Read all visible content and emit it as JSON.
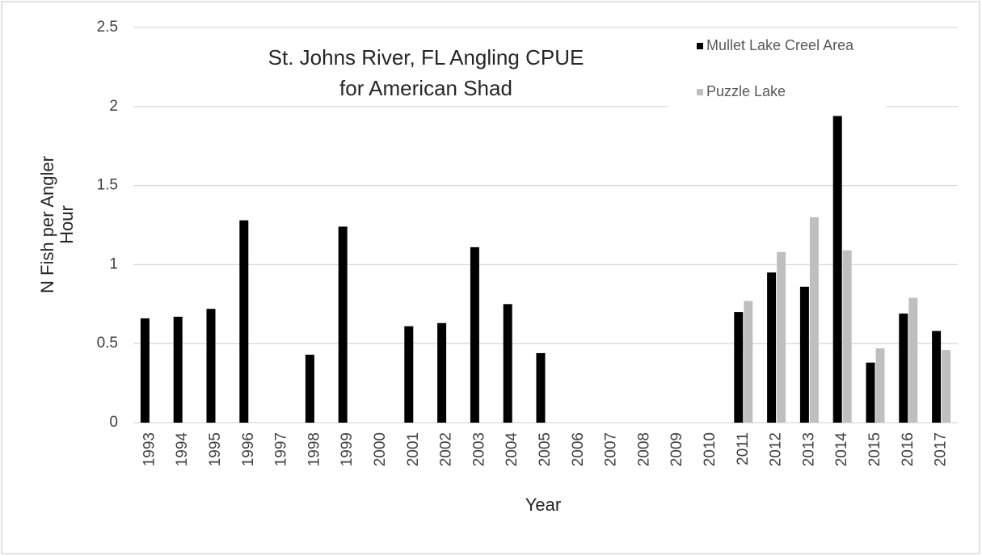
{
  "chart_data": {
    "type": "bar",
    "title": [
      "St. Johns River, FL Angling CPUE",
      "for American Shad"
    ],
    "x_label": "Year",
    "y_label": [
      "N Fish per Angler",
      "Hour"
    ],
    "categories": [
      "1993",
      "1994",
      "1995",
      "1996",
      "1997",
      "1998",
      "1999",
      "2000",
      "2001",
      "2002",
      "2003",
      "2004",
      "2005",
      "2006",
      "2007",
      "2008",
      "2009",
      "2010",
      "2011",
      "2012",
      "2013",
      "2014",
      "2015",
      "2016",
      "2017"
    ],
    "series": [
      {
        "name": "Mullet Lake Creel Area",
        "color": "#000000",
        "values": [
          0.66,
          0.67,
          0.72,
          1.28,
          null,
          0.43,
          1.24,
          null,
          0.61,
          0.63,
          1.11,
          0.75,
          0.44,
          null,
          null,
          null,
          null,
          null,
          0.7,
          0.95,
          0.86,
          1.94,
          0.38,
          0.69,
          0.58
        ]
      },
      {
        "name": "Puzzle Lake",
        "color": "#bfbfbf",
        "values": [
          null,
          null,
          null,
          null,
          null,
          null,
          null,
          null,
          null,
          null,
          null,
          null,
          null,
          null,
          null,
          null,
          null,
          null,
          0.77,
          1.08,
          1.3,
          1.09,
          0.47,
          0.79,
          0.46
        ]
      }
    ],
    "ylim": [
      0,
      2.5
    ],
    "yticks": [
      0,
      0.5,
      1,
      1.5,
      2,
      2.5
    ],
    "grid": true,
    "legend": "top-right"
  }
}
